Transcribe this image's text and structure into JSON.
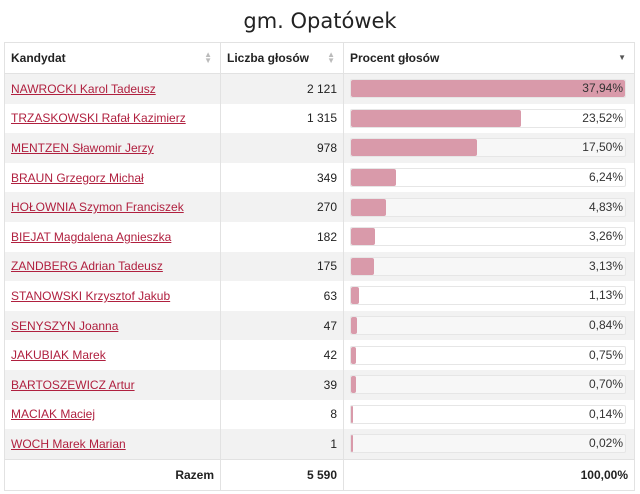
{
  "title": "gm. Opatówek",
  "columns": {
    "candidate": "Kandydat",
    "votes": "Liczba głosów",
    "percent": "Procent głosów"
  },
  "rows": [
    {
      "name": "NAWROCKI Karol Tadeusz",
      "votes": "2 121",
      "percent": "37,94%",
      "share": 37.94
    },
    {
      "name": "TRZASKOWSKI Rafał Kazimierz",
      "votes": "1 315",
      "percent": "23,52%",
      "share": 23.52
    },
    {
      "name": "MENTZEN Sławomir Jerzy",
      "votes": "978",
      "percent": "17,50%",
      "share": 17.5
    },
    {
      "name": "BRAUN Grzegorz Michał",
      "votes": "349",
      "percent": "6,24%",
      "share": 6.24
    },
    {
      "name": "HOŁOWNIA Szymon Franciszek",
      "votes": "270",
      "percent": "4,83%",
      "share": 4.83
    },
    {
      "name": "BIEJAT Magdalena Agnieszka",
      "votes": "182",
      "percent": "3,26%",
      "share": 3.26
    },
    {
      "name": "ZANDBERG Adrian Tadeusz",
      "votes": "175",
      "percent": "3,13%",
      "share": 3.13
    },
    {
      "name": "STANOWSKI Krzysztof Jakub",
      "votes": "63",
      "percent": "1,13%",
      "share": 1.13
    },
    {
      "name": "SENYSZYN Joanna",
      "votes": "47",
      "percent": "0,84%",
      "share": 0.84
    },
    {
      "name": "JAKUBIAK Marek",
      "votes": "42",
      "percent": "0,75%",
      "share": 0.75
    },
    {
      "name": "BARTOSZEWICZ Artur",
      "votes": "39",
      "percent": "0,70%",
      "share": 0.7
    },
    {
      "name": "MACIAK Maciej",
      "votes": "8",
      "percent": "0,14%",
      "share": 0.14
    },
    {
      "name": "WOCH Marek Marian",
      "votes": "1",
      "percent": "0,02%",
      "share": 0.02
    }
  ],
  "total": {
    "label": "Razem",
    "votes": "5 590",
    "percent": "100,00%"
  },
  "icons": {
    "sort_unsorted": "sort-both-icon",
    "sort_desc": "sort-desc-icon"
  },
  "colors": {
    "bar": "#d99aaa",
    "link": "#b0203f"
  }
}
